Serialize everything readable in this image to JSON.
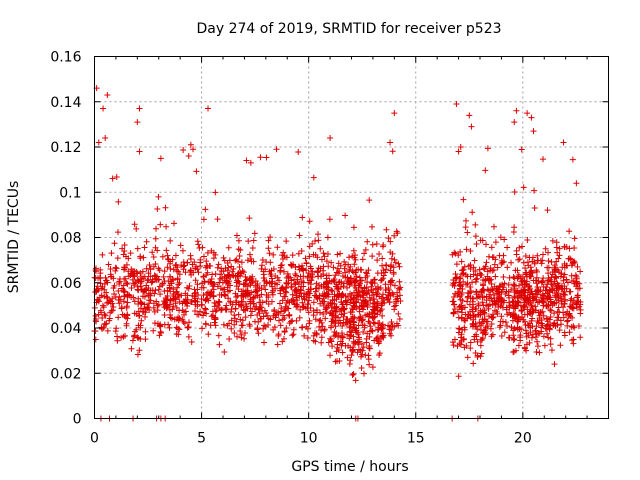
{
  "chart_data": {
    "type": "scatter",
    "title": "Day 274 of 2019, SRMTID for receiver p523",
    "xlabel": "GPS time / hours",
    "ylabel": "SRMTID / TECUs",
    "xlim": [
      0,
      24
    ],
    "ylim": [
      0,
      0.16
    ],
    "x_ticks": [
      0,
      5,
      10,
      15,
      20
    ],
    "x_tick_labels": [
      "0",
      "5",
      "10",
      "15",
      "20"
    ],
    "y_ticks": [
      0,
      0.02,
      0.04,
      0.06,
      0.08,
      0.1,
      0.12,
      0.14,
      0.16
    ],
    "y_tick_labels": [
      "0",
      "0.02",
      "0.04",
      "0.06",
      "0.08",
      "0.1",
      "0.12",
      "0.14",
      "0.16"
    ],
    "grid": true,
    "marker": "+",
    "color": "#dd0000",
    "series": [
      {
        "name": "SRMTID",
        "segments": [
          {
            "x_start": 0.0,
            "x_end": 14.3,
            "y_mean": 0.055,
            "y_spread": 0.018,
            "y_min": 0.012,
            "y_max": 0.146,
            "n": 1500
          },
          {
            "x_start": 16.7,
            "x_end": 22.7,
            "y_mean": 0.055,
            "y_spread": 0.017,
            "y_min": 0.015,
            "y_max": 0.14,
            "n": 700
          }
        ],
        "dips": [
          {
            "x_start": 11.0,
            "x_end": 13.5,
            "y_mean": 0.04,
            "y_spread": 0.014,
            "n": 180
          },
          {
            "x_start": 17.0,
            "x_end": 18.3,
            "y_mean": 0.04,
            "y_spread": 0.012,
            "n": 60
          },
          {
            "x_start": 19.5,
            "x_end": 21.7,
            "y_mean": 0.045,
            "y_spread": 0.014,
            "n": 120
          }
        ],
        "spikes": [
          {
            "x": 0.1,
            "y": 0.146
          },
          {
            "x": 0.4,
            "y": 0.137
          },
          {
            "x": 0.6,
            "y": 0.143
          },
          {
            "x": 0.5,
            "y": 0.124
          },
          {
            "x": 0.2,
            "y": 0.122
          },
          {
            "x": 2.1,
            "y": 0.137
          },
          {
            "x": 2.0,
            "y": 0.131
          },
          {
            "x": 2.1,
            "y": 0.118
          },
          {
            "x": 3.1,
            "y": 0.115
          },
          {
            "x": 4.5,
            "y": 0.121
          },
          {
            "x": 4.6,
            "y": 0.119
          },
          {
            "x": 4.4,
            "y": 0.116
          },
          {
            "x": 5.3,
            "y": 0.137
          },
          {
            "x": 7.3,
            "y": 0.113
          },
          {
            "x": 8.5,
            "y": 0.119
          },
          {
            "x": 11.0,
            "y": 0.124
          },
          {
            "x": 13.8,
            "y": 0.122
          },
          {
            "x": 14.0,
            "y": 0.135
          },
          {
            "x": 16.9,
            "y": 0.139
          },
          {
            "x": 17.1,
            "y": 0.12
          },
          {
            "x": 17.0,
            "y": 0.118
          },
          {
            "x": 17.5,
            "y": 0.134
          },
          {
            "x": 17.6,
            "y": 0.129
          },
          {
            "x": 19.7,
            "y": 0.136
          },
          {
            "x": 19.6,
            "y": 0.131
          },
          {
            "x": 20.2,
            "y": 0.135
          },
          {
            "x": 20.4,
            "y": 0.133
          },
          {
            "x": 20.5,
            "y": 0.127
          },
          {
            "x": 21.9,
            "y": 0.122
          },
          {
            "x": 22.5,
            "y": 0.104
          }
        ],
        "zero_values_x": [
          0.3,
          0.7,
          1.8,
          2.9,
          3.1,
          3.3,
          12.2,
          12.3,
          16.7,
          17.9
        ]
      }
    ]
  }
}
